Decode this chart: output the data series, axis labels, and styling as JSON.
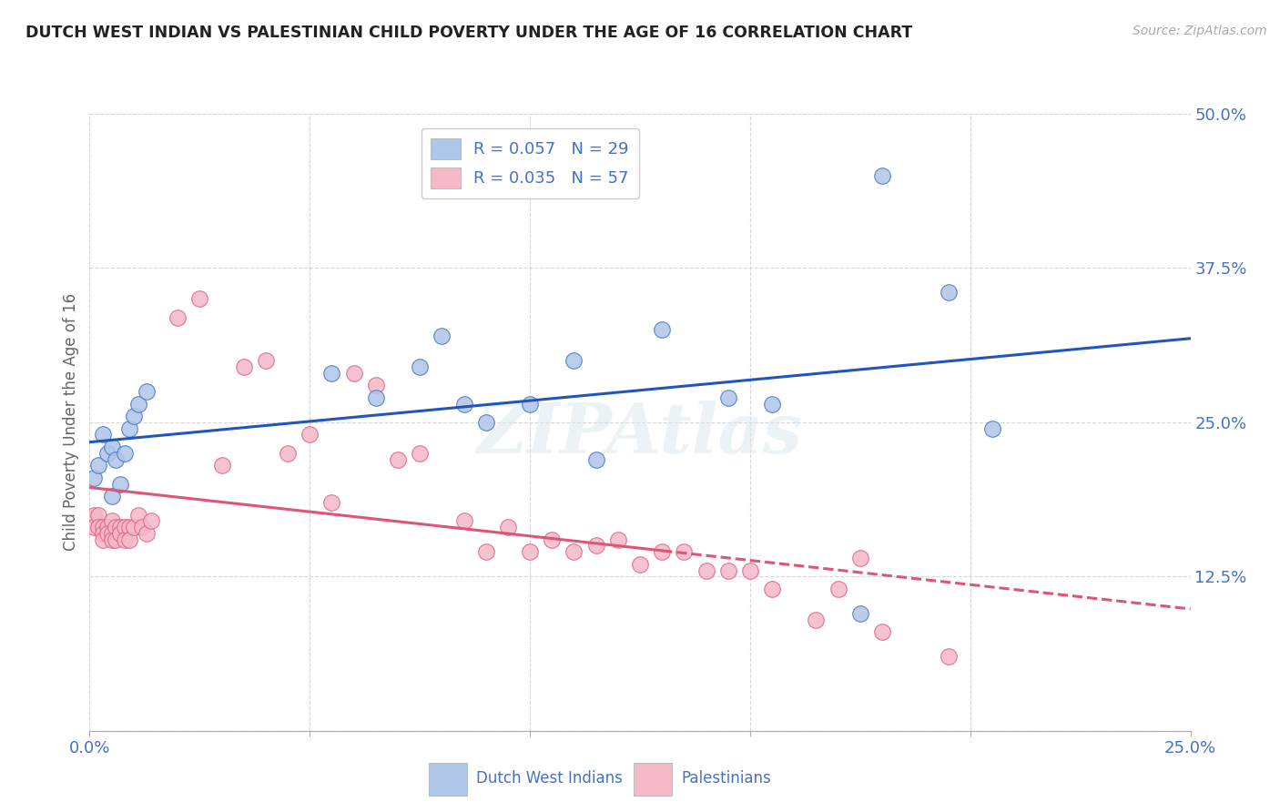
{
  "title": "DUTCH WEST INDIAN VS PALESTINIAN CHILD POVERTY UNDER THE AGE OF 16 CORRELATION CHART",
  "source": "Source: ZipAtlas.com",
  "ylabel": "Child Poverty Under the Age of 16",
  "xlim": [
    0.0,
    0.25
  ],
  "ylim": [
    0.0,
    0.5
  ],
  "watermark": "ZIPAtlas",
  "blue_color": "#4472c4",
  "pink_color": "#e0607e",
  "blue_scatter_color": "#aec6e8",
  "pink_scatter_color": "#f4b8c8",
  "blue_line_color": "#2255bb",
  "pink_line_color": "#dd5577",
  "axis_label_color": "#4472c4",
  "title_color": "#222222",
  "background_color": "#ffffff",
  "grid_color": "#cccccc",
  "dutch_x": [
    0.001,
    0.002,
    0.003,
    0.004,
    0.005,
    0.005,
    0.006,
    0.007,
    0.008,
    0.009,
    0.01,
    0.011,
    0.013,
    0.055,
    0.065,
    0.075,
    0.08,
    0.085,
    0.09,
    0.1,
    0.11,
    0.115,
    0.13,
    0.145,
    0.155,
    0.175,
    0.18,
    0.195,
    0.205
  ],
  "dutch_y": [
    0.205,
    0.215,
    0.24,
    0.225,
    0.23,
    0.19,
    0.22,
    0.2,
    0.225,
    0.245,
    0.255,
    0.265,
    0.275,
    0.29,
    0.27,
    0.295,
    0.32,
    0.265,
    0.25,
    0.265,
    0.3,
    0.22,
    0.325,
    0.27,
    0.265,
    0.095,
    0.45,
    0.355,
    0.245
  ],
  "palest_x": [
    0.001,
    0.001,
    0.002,
    0.002,
    0.003,
    0.003,
    0.003,
    0.004,
    0.004,
    0.005,
    0.005,
    0.005,
    0.006,
    0.006,
    0.007,
    0.007,
    0.008,
    0.008,
    0.009,
    0.009,
    0.01,
    0.011,
    0.012,
    0.013,
    0.014,
    0.02,
    0.025,
    0.03,
    0.035,
    0.04,
    0.045,
    0.05,
    0.055,
    0.06,
    0.065,
    0.07,
    0.075,
    0.085,
    0.09,
    0.095,
    0.1,
    0.105,
    0.11,
    0.115,
    0.12,
    0.125,
    0.13,
    0.135,
    0.14,
    0.145,
    0.15,
    0.155,
    0.165,
    0.17,
    0.175,
    0.18,
    0.195
  ],
  "palest_y": [
    0.175,
    0.165,
    0.175,
    0.165,
    0.165,
    0.16,
    0.155,
    0.165,
    0.16,
    0.17,
    0.16,
    0.155,
    0.165,
    0.155,
    0.165,
    0.16,
    0.165,
    0.155,
    0.165,
    0.155,
    0.165,
    0.175,
    0.165,
    0.16,
    0.17,
    0.335,
    0.35,
    0.215,
    0.295,
    0.3,
    0.225,
    0.24,
    0.185,
    0.29,
    0.28,
    0.22,
    0.225,
    0.17,
    0.145,
    0.165,
    0.145,
    0.155,
    0.145,
    0.15,
    0.155,
    0.135,
    0.145,
    0.145,
    0.13,
    0.13,
    0.13,
    0.115,
    0.09,
    0.115,
    0.14,
    0.08,
    0.06
  ]
}
